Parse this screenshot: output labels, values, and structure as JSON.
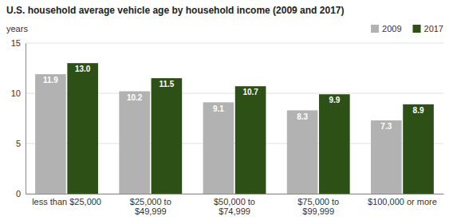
{
  "chart_data": {
    "type": "bar",
    "title": "U.S. household average vehicle age by household income (2009 and 2017)",
    "ylabel": "years",
    "categories": [
      "less than $25,000",
      "$25,000 to\n$49,999",
      "$50,000 to\n$74,999",
      "$75,000 to\n$99,999",
      "$100,000 or more"
    ],
    "series": [
      {
        "name": "2009",
        "color": "#b2b2b2",
        "values": [
          11.9,
          10.2,
          9.1,
          8.3,
          7.3
        ],
        "value_labels": [
          "11.9",
          "10.2",
          "9.1",
          "8.3",
          "7.3"
        ]
      },
      {
        "name": "2017",
        "color": "#2d5016",
        "values": [
          13.0,
          11.5,
          10.7,
          9.9,
          8.9
        ],
        "value_labels": [
          "13.0",
          "11.5",
          "10.7",
          "9.9",
          "8.9"
        ]
      }
    ],
    "ylim": [
      0,
      15
    ],
    "yticks": [
      0,
      5,
      10,
      15
    ],
    "grid": true,
    "legend": "upper right",
    "data_labels": true
  }
}
